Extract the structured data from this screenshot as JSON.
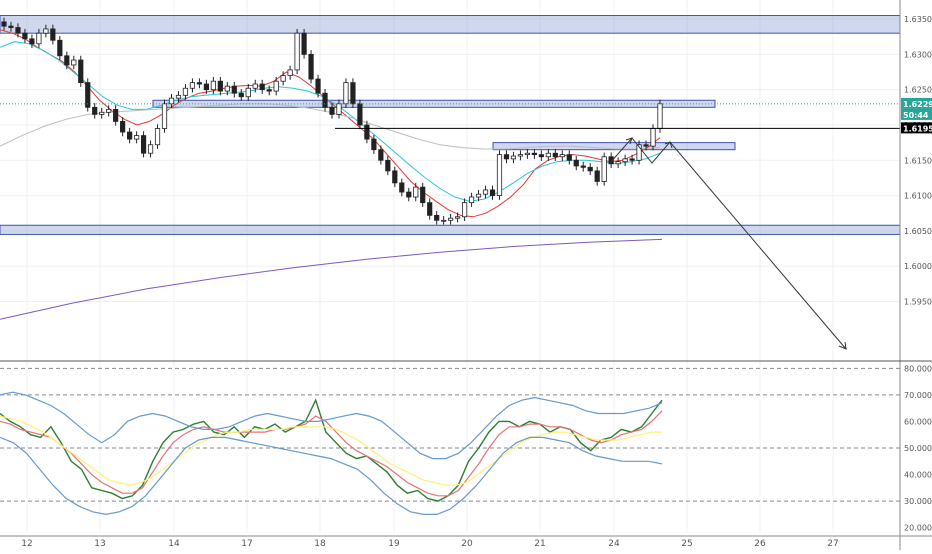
{
  "chart_data": [
    {
      "type": "candlestick",
      "instrument_note": "price panel",
      "ylim": [
        1.587,
        1.636
      ],
      "y_ticks": [
        "1.63500",
        "1.63000",
        "1.62500",
        "1.62000",
        "1.61500",
        "1.61000",
        "1.60500",
        "1.60000",
        "1.59500"
      ],
      "x_ticks": [
        "12",
        "13",
        "14",
        "17",
        "18",
        "19",
        "20",
        "21",
        "24",
        "25",
        "26",
        "27"
      ],
      "last_price_label": "1.62298",
      "countdown_label": "50:44",
      "level_label": "1.61952",
      "accent_colors": {
        "last_price": "#26a69a",
        "level": "#000000"
      },
      "close_path": [
        1.634,
        1.6338,
        1.633,
        1.6322,
        1.6315,
        1.633,
        1.6336,
        1.632,
        1.6298,
        1.6285,
        1.6292,
        1.626,
        1.6225,
        1.6215,
        1.6218,
        1.6222,
        1.6205,
        1.619,
        1.618,
        1.6185,
        1.616,
        1.6172,
        1.6195,
        1.623,
        1.6238,
        1.6242,
        1.6252,
        1.626,
        1.6258,
        1.625,
        1.6262,
        1.6248,
        1.6255,
        1.6245,
        1.624,
        1.6252,
        1.6258,
        1.625,
        1.6248,
        1.6262,
        1.627,
        1.6278,
        1.633,
        1.63,
        1.6265,
        1.6245,
        1.6225,
        1.6215,
        1.623,
        1.626,
        1.623,
        1.62,
        1.618,
        1.6165,
        1.615,
        1.6135,
        1.6118,
        1.6105,
        1.6098,
        1.6112,
        1.609,
        1.6072,
        1.6065,
        1.6065,
        1.6068,
        1.607,
        1.609,
        1.6098,
        1.6102,
        1.6108,
        1.61,
        1.6158,
        1.6152,
        1.6156,
        1.6158,
        1.616,
        1.6158,
        1.6155,
        1.616,
        1.6155,
        1.6158,
        1.615,
        1.6142,
        1.614,
        1.6135,
        1.612,
        1.6155,
        1.6145,
        1.6148,
        1.6152,
        1.615,
        1.6172,
        1.617,
        1.6195,
        1.623
      ],
      "moving_averages": [
        {
          "color": "#e53935",
          "values": [
            1.6335,
            1.633,
            1.6322,
            1.631,
            1.63,
            1.629,
            1.6275,
            1.6255,
            1.6235,
            1.622,
            1.6208,
            1.62,
            1.6205,
            1.6215,
            1.6228,
            1.6238,
            1.6245,
            1.6248,
            1.6252,
            1.6255,
            1.6256,
            1.6255,
            1.6262,
            1.6275,
            1.6268,
            1.6255,
            1.624,
            1.6225,
            1.621,
            1.6195,
            1.618,
            1.616,
            1.614,
            1.612,
            1.6105,
            1.6092,
            1.608,
            1.6072,
            1.607,
            1.6075,
            1.6085,
            1.6098,
            1.6115,
            1.6138,
            1.615,
            1.6156,
            1.6158,
            1.6156,
            1.6152,
            1.6148,
            1.615,
            1.6158,
            1.6168,
            1.6182
          ]
        },
        {
          "color": "#26c6da",
          "values": [
            1.631,
            1.6318,
            1.6315,
            1.6305,
            1.6292,
            1.6275,
            1.6258,
            1.624,
            1.6228,
            1.6222,
            1.6222,
            1.6228,
            1.6235,
            1.624,
            1.6242,
            1.6244,
            1.6246,
            1.6248,
            1.6252,
            1.6254,
            1.6252,
            1.6248,
            1.624,
            1.6228,
            1.6212,
            1.6195,
            1.6178,
            1.616,
            1.6142,
            1.6125,
            1.611,
            1.6098,
            1.6092,
            1.6095,
            1.6105,
            1.6118,
            1.6132,
            1.6142,
            1.6148,
            1.615,
            1.615,
            1.6148,
            1.6145,
            1.6148,
            1.6152,
            1.616
          ]
        },
        {
          "color": "#bdbdbd",
          "values": [
            1.617,
            1.6185,
            1.6198,
            1.6208,
            1.6215,
            1.6218,
            1.622,
            1.6222,
            1.6224,
            1.6226,
            1.6228,
            1.623,
            1.623,
            1.6228,
            1.6224,
            1.6218,
            1.621,
            1.62,
            1.619,
            1.618,
            1.6172,
            1.6168,
            1.6166,
            1.6166,
            1.6168,
            1.617,
            1.617,
            1.6168,
            1.6166,
            1.6166,
            1.6168
          ]
        },
        {
          "color": "#7e57c2",
          "values": [
            1.5925,
            1.5948,
            1.5968,
            1.5984,
            1.5998,
            1.601,
            1.602,
            1.6028,
            1.6034,
            1.6038
          ]
        }
      ],
      "zones": [
        {
          "lo": 1.633,
          "hi": 1.6355,
          "extend": "full"
        },
        {
          "lo": 1.6225,
          "hi": 1.6235,
          "extend": "partial"
        },
        {
          "lo": 1.6165,
          "hi": 1.6175,
          "extend": "partial"
        },
        {
          "lo": 1.6045,
          "hi": 1.6058,
          "extend": "full"
        }
      ]
    },
    {
      "type": "line",
      "instrument_note": "oscillator panel with bands",
      "ylim": [
        18,
        82
      ],
      "y_ticks": [
        "80.0000",
        "70.0000",
        "60.0000",
        "50.0000",
        "40.0000",
        "30.0000",
        "20.0000"
      ],
      "dashed_levels": [
        80,
        70,
        50,
        30
      ],
      "series": [
        {
          "color": "#2e7d32",
          "values": [
            63,
            60,
            58,
            55,
            54,
            58,
            52,
            45,
            42,
            35,
            34,
            33,
            31,
            32,
            36,
            45,
            52,
            56,
            57,
            59,
            60,
            56,
            55,
            58,
            54,
            58,
            57,
            59,
            56,
            58,
            60,
            68,
            56,
            52,
            48,
            46,
            47,
            44,
            41,
            36,
            33,
            34,
            31,
            30,
            32,
            36,
            45,
            50,
            56,
            60,
            60,
            58,
            60,
            59,
            56,
            58,
            57,
            52,
            49,
            53,
            54,
            57,
            56,
            58,
            63,
            68
          ]
        },
        {
          "color": "#e57373",
          "values": [
            60,
            59,
            57,
            56,
            55,
            54,
            51,
            48,
            44,
            40,
            37,
            35,
            33,
            33,
            35,
            41,
            47,
            52,
            55,
            57,
            58,
            57,
            56,
            56,
            56,
            56,
            56,
            57,
            57,
            58,
            59,
            62,
            60,
            56,
            52,
            49,
            47,
            45,
            43,
            40,
            37,
            35,
            33,
            32,
            32,
            34,
            39,
            44,
            50,
            55,
            58,
            58,
            59,
            59,
            58,
            58,
            57,
            55,
            53,
            52,
            53,
            55,
            56,
            57,
            60,
            64
          ]
        },
        {
          "color": "#fff176",
          "values": [
            62,
            61,
            60,
            58,
            56,
            53,
            50,
            47,
            44,
            41,
            38,
            37,
            36,
            37,
            39,
            42,
            45,
            48,
            51,
            53,
            55,
            56,
            56,
            57,
            57,
            57,
            57,
            58,
            58,
            58,
            58,
            57,
            55,
            53,
            50,
            47,
            44,
            42,
            40,
            38,
            37,
            36,
            36,
            37,
            40,
            43,
            46,
            49,
            52,
            54,
            55,
            56,
            56,
            55,
            54,
            53,
            53,
            53,
            54,
            55,
            56,
            56
          ]
        },
        {
          "color": "#6699cc",
          "values": [
            70,
            71,
            70,
            68,
            66,
            63,
            59,
            55,
            52,
            55,
            60,
            62,
            63,
            62,
            60,
            58,
            57,
            57,
            58,
            60,
            62,
            63,
            62,
            61,
            60,
            60,
            61,
            62,
            63,
            62,
            60,
            56,
            52,
            48,
            46,
            46,
            48,
            52,
            57,
            62,
            66,
            68,
            69,
            68,
            67,
            66,
            64,
            63,
            63,
            63,
            64,
            65,
            67
          ]
        },
        {
          "color": "#6699cc",
          "values": [
            54,
            52,
            48,
            42,
            36,
            31,
            28,
            26,
            25,
            26,
            28,
            32,
            38,
            44,
            50,
            53,
            54,
            54,
            53,
            52,
            51,
            50,
            49,
            48,
            47,
            46,
            44,
            42,
            38,
            33,
            29,
            26,
            25,
            25,
            27,
            31,
            36,
            42,
            48,
            52,
            54,
            54,
            53,
            52,
            49,
            47,
            46,
            45,
            45,
            45,
            44
          ]
        }
      ]
    }
  ]
}
